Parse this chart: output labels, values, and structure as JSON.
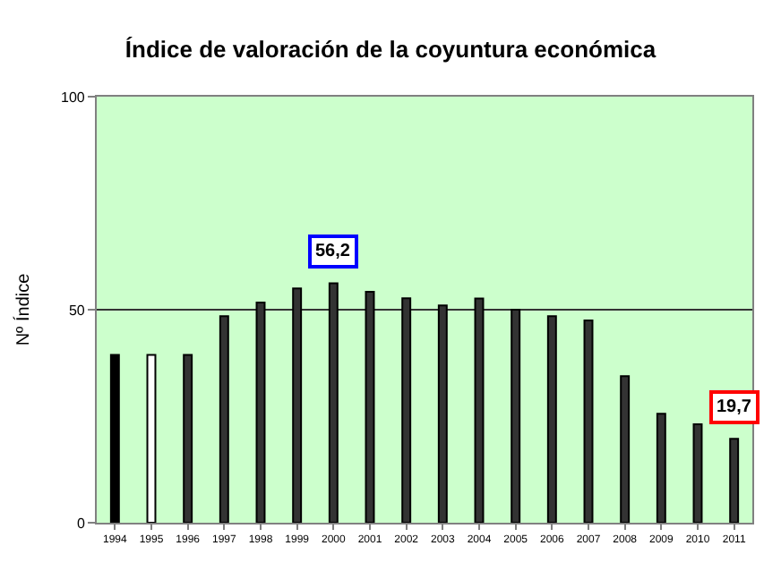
{
  "chart_data": {
    "type": "bar",
    "title": "Índice de valoración de la coyuntura económica",
    "ylabel": "Nº Índice",
    "categories": [
      "1994",
      "1995",
      "1996",
      "1997",
      "1998",
      "1999",
      "2000",
      "2001",
      "2002",
      "2003",
      "2004",
      "2005",
      "2006",
      "2007",
      "2008",
      "2009",
      "2010",
      "2011"
    ],
    "values": [
      39.4,
      39.4,
      39.4,
      48.5,
      51.7,
      55.0,
      56.2,
      54.2,
      52.7,
      51.0,
      52.6,
      50.0,
      48.5,
      47.5,
      34.4,
      25.6,
      23.1,
      19.7
    ],
    "colors": [
      "#000000",
      "#ffffff",
      "#333333",
      "#333333",
      "#333333",
      "#333333",
      "#333333",
      "#333333",
      "#333333",
      "#333333",
      "#333333",
      "#333333",
      "#333333",
      "#333333",
      "#333333",
      "#333333",
      "#333333",
      "#333333"
    ],
    "ylim": [
      0,
      100
    ],
    "yticks": [
      0,
      50,
      100
    ],
    "grid": "y",
    "annotations": [
      {
        "text": "56,2",
        "x": "2000",
        "y": 56.2
      },
      {
        "text": "19,7",
        "x": "2011",
        "y": 19.7
      }
    ]
  }
}
